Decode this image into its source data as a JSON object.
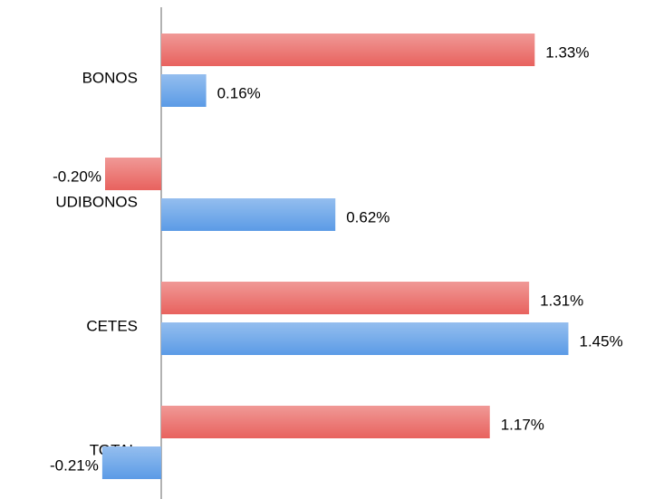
{
  "chart_data": {
    "type": "hbar",
    "categories": [
      "BONOS",
      "UDIBONOS",
      "CETES",
      "TOTAL"
    ],
    "series": [
      {
        "color": "#e8625e",
        "values": [
          1.33,
          -0.2,
          1.31,
          1.17
        ],
        "value_labels": [
          "1.33%",
          "-0.20%",
          "1.31%",
          "1.17%"
        ]
      },
      {
        "color": "#5b9be6",
        "values": [
          0.16,
          0.62,
          1.45,
          -0.21
        ],
        "value_labels": [
          "0.16%",
          "0.62%",
          "1.45%",
          "-0.21%"
        ]
      }
    ]
  }
}
